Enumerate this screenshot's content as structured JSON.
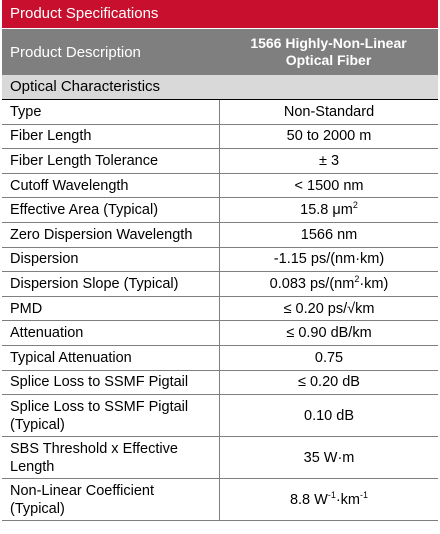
{
  "header": {
    "title": "Product Specifications",
    "description_label": "Product Description",
    "description_value_line1": "1566 Highly-Non-Linear",
    "description_value_line2": "Optical Fiber"
  },
  "section": {
    "title": "Optical Characteristics"
  },
  "rows": [
    {
      "label": "Type",
      "value": "Non-Standard"
    },
    {
      "label": "Fiber Length",
      "value": "50 to 2000 m"
    },
    {
      "label": "Fiber Length Tolerance",
      "value": "± 3"
    },
    {
      "label": "Cutoff Wavelength",
      "value": "< 1500 nm"
    },
    {
      "label": "Effective Area (Typical)",
      "value_pre": "15.8 μm",
      "value_sup": "2"
    },
    {
      "label": "Zero Dispersion Wavelength",
      "value": "1566 nm"
    },
    {
      "label": "Dispersion",
      "value": "-1.15 ps/(nm·km)"
    },
    {
      "label": "Dispersion Slope (Typical)",
      "value_pre": "0.083 ps/(nm",
      "value_sup": "2",
      "value_post": "·km)"
    },
    {
      "label": "PMD",
      "value": "≤ 0.20 ps/√km"
    },
    {
      "label": "Attenuation",
      "value": "≤ 0.90 dB/km"
    },
    {
      "label": "Typical Attenuation",
      "value": "0.75"
    },
    {
      "label": "Splice Loss to SSMF Pigtail",
      "value": "≤ 0.20 dB"
    },
    {
      "label_line1": "Splice Loss to SSMF Pigtail",
      "label_line2": "(Typical)",
      "value": "0.10 dB"
    },
    {
      "label_line1": "SBS Threshold x Effective",
      "label_line2": "Length",
      "value": "35 W·m"
    },
    {
      "label_line1": "Non-Linear Coefficient",
      "label_line2": "(Typical)",
      "value_pre": "8.8 W",
      "value_sup": "-1",
      "value_mid": "·km",
      "value_sup2": "-1"
    }
  ]
}
